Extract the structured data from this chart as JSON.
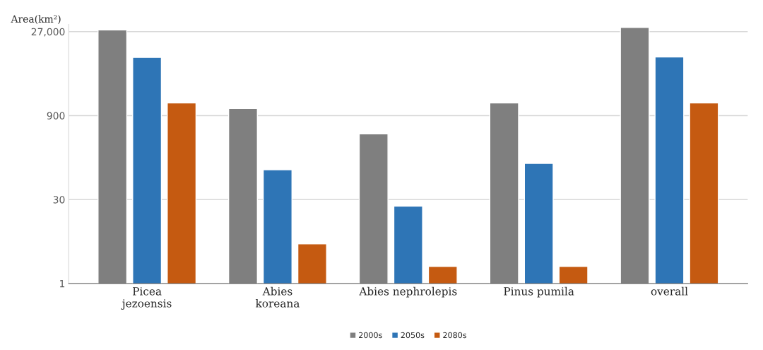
{
  "chart_data": {
    "type": "bar",
    "ylabel": "Area(km²)",
    "categories": [
      "Picea\njezoensis",
      "Abies\nkoreana",
      "Abies nephrolepis",
      "Pinus pumila",
      "overall"
    ],
    "series": [
      {
        "name": "2000s",
        "color": "#7f7f7f",
        "values": [
          29000,
          1200,
          430,
          1500,
          32000
        ]
      },
      {
        "name": "2050s",
        "color": "#2e75b6",
        "values": [
          9500,
          100,
          23,
          130,
          9700
        ]
      },
      {
        "name": "2080s",
        "color": "#c55a11",
        "values": [
          1500,
          5,
          2,
          2,
          1500
        ]
      }
    ],
    "log": "y",
    "ylim": [
      1,
      36000
    ],
    "yticks": [
      {
        "value": 1,
        "label": "1"
      },
      {
        "value": 30,
        "label": "30"
      },
      {
        "value": 900,
        "label": "900"
      },
      {
        "value": 27000,
        "label": "27,000"
      }
    ],
    "grid": "y",
    "legend": "bottom"
  }
}
